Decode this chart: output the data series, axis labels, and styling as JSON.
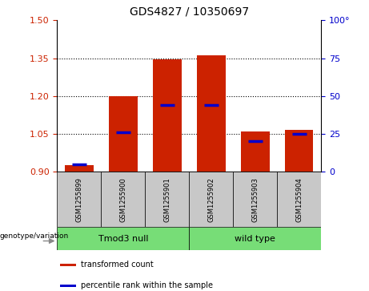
{
  "title": "GDS4827 / 10350697",
  "samples": [
    "GSM1255899",
    "GSM1255900",
    "GSM1255901",
    "GSM1255902",
    "GSM1255903",
    "GSM1255904"
  ],
  "transformed_counts": [
    0.925,
    1.2,
    1.345,
    1.36,
    1.058,
    1.065
  ],
  "percentile_ranks": [
    5,
    26,
    44,
    44,
    20,
    25
  ],
  "groups": [
    {
      "label": "Tmod3 null",
      "indices": [
        0,
        1,
        2
      ],
      "color": "#77DD77"
    },
    {
      "label": "wild type",
      "indices": [
        3,
        4,
        5
      ],
      "color": "#77DD77"
    }
  ],
  "group_label": "genotype/variation",
  "ylim_left": [
    0.9,
    1.5
  ],
  "ylim_right": [
    0,
    100
  ],
  "yticks_left": [
    0.9,
    1.05,
    1.2,
    1.35,
    1.5
  ],
  "yticks_right": [
    0,
    25,
    50,
    75,
    100
  ],
  "bar_color": "#CC2200",
  "percentile_color": "#0000CC",
  "sample_box_color": "#C8C8C8",
  "legend_items": [
    {
      "label": "transformed count",
      "color": "#CC2200"
    },
    {
      "label": "percentile rank within the sample",
      "color": "#0000CC"
    }
  ]
}
